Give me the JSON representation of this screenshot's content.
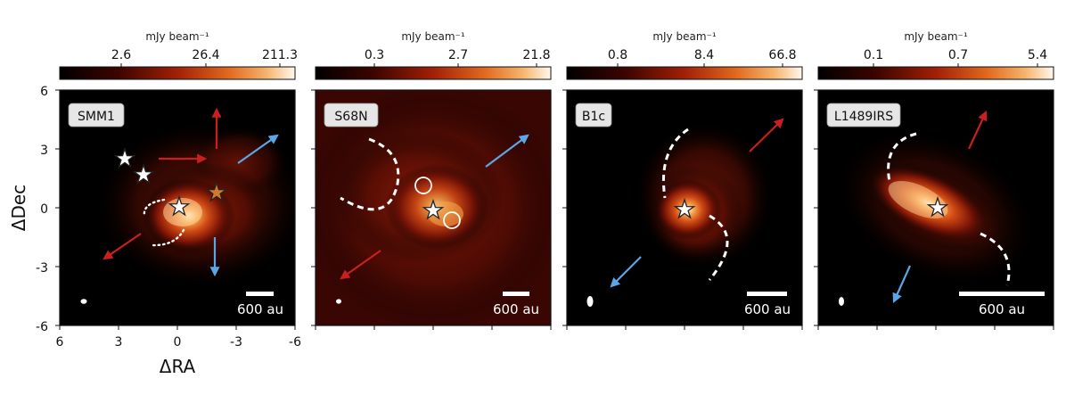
{
  "axes": {
    "ylabel": "ΔDec",
    "xlabel": "ΔRA",
    "y_ticks": [
      "6",
      "3",
      "0",
      "-3",
      "-6"
    ],
    "x_ticks": [
      "6",
      "3",
      "0",
      "-3",
      "-6"
    ]
  },
  "colorbar_unit": "mJy beam⁻¹",
  "panels": [
    {
      "name": "SMM1",
      "colorbar_ticks": [
        "2.6",
        "26.4",
        "211.3"
      ],
      "scale_label": "600 au"
    },
    {
      "name": "S68N",
      "colorbar_ticks": [
        "0.3",
        "2.7",
        "21.8"
      ],
      "scale_label": "600 au"
    },
    {
      "name": "B1c",
      "colorbar_ticks": [
        "0.8",
        "8.4",
        "66.8"
      ],
      "scale_label": "600 au"
    },
    {
      "name": "L1489IRS",
      "colorbar_ticks": [
        "0.1",
        "0.7",
        "5.4"
      ],
      "scale_label": "600 au"
    }
  ],
  "colors": {
    "red_outflow": "#c8201e",
    "blue_outflow": "#5aa7e8",
    "background": "#000000"
  }
}
